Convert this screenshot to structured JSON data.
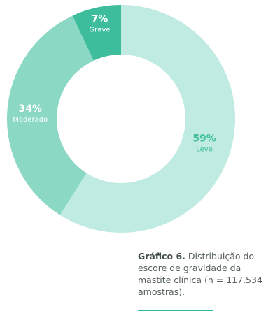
{
  "chart_data": {
    "type": "pie",
    "style": "donut",
    "categories": [
      "Leve",
      "Moderado",
      "Grave"
    ],
    "values": [
      59,
      34,
      7
    ],
    "value_labels": [
      "59%",
      "34%",
      "7%"
    ],
    "colors": [
      "#c0ebe2",
      "#8bd8c4",
      "#3dbd9b"
    ],
    "label_colors": [
      "#3fbf9d",
      "#ffffff",
      "#ffffff"
    ]
  },
  "caption": {
    "label": "Gráfico 6.",
    "text": " Distribuição do escore de gravidade da mastite clínica (n = 117.534 amostras)."
  }
}
